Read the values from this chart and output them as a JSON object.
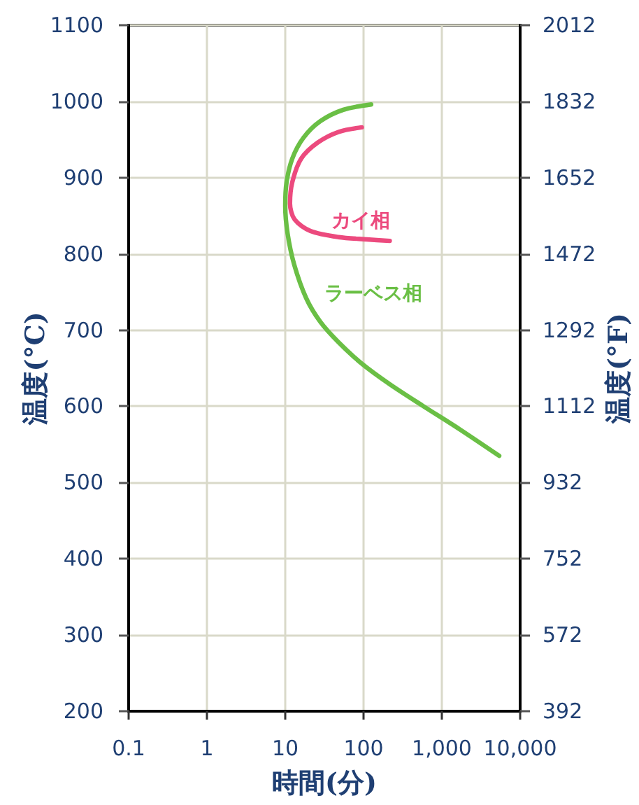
{
  "chart_data": {
    "type": "line",
    "xlabel": "時間(分)",
    "ylabel": "温度(°C)",
    "y2label": "温度(°F)",
    "log": "x",
    "xlim": [
      0.1,
      10000
    ],
    "xticks": [
      0.1,
      1,
      10,
      100,
      {
        "value": 1000,
        "label": "1,000"
      },
      {
        "value": 10000,
        "label": "10,000"
      }
    ],
    "ylim": [
      200,
      1100
    ],
    "yticks": [
      200,
      300,
      400,
      500,
      600,
      700,
      800,
      900,
      1000,
      1100
    ],
    "y2lim": [
      392,
      2012
    ],
    "y2ticks": [
      392,
      572,
      752,
      932,
      1112,
      1292,
      1472,
      1652,
      1832,
      2012
    ],
    "grid": true,
    "legend": false,
    "marker": "none",
    "line_style": "solid",
    "series": [
      {
        "name": "カイ相",
        "color": "#ec4a7e",
        "x": [
          95,
          48,
          26,
          16,
          12.3,
          11.5,
          13.2,
          21,
          48,
          110,
          216
        ],
        "values": [
          966,
          960,
          946,
          925,
          894,
          866,
          845,
          830,
          822,
          819,
          817
        ]
      },
      {
        "name": "ラーベス相",
        "color": "#6abf45",
        "x": [
          125,
          55,
          28,
          17,
          12.3,
          10.4,
          10,
          10.7,
          13,
          18.5,
          28,
          48,
          95,
          216,
          564,
          1680,
          5400
        ],
        "values": [
          996,
          989,
          974,
          952,
          925,
          894,
          863,
          827,
          786,
          742,
          711,
          684,
          656,
          629,
          601,
          570,
          535
        ]
      }
    ]
  }
}
